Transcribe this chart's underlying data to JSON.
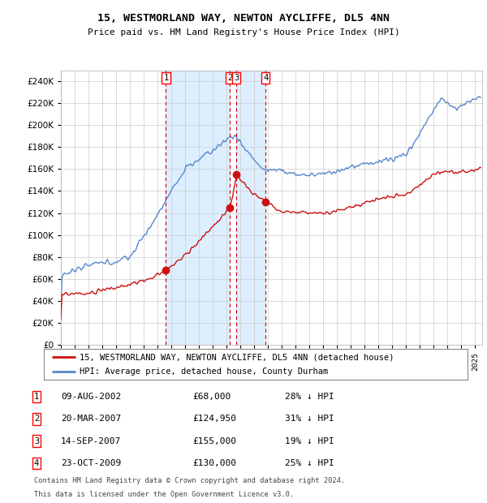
{
  "title1": "15, WESTMORLAND WAY, NEWTON AYCLIFFE, DL5 4NN",
  "title2": "Price paid vs. HM Land Registry's House Price Index (HPI)",
  "legend_label_red": "15, WESTMORLAND WAY, NEWTON AYCLIFFE, DL5 4NN (detached house)",
  "legend_label_blue": "HPI: Average price, detached house, County Durham",
  "footer1": "Contains HM Land Registry data © Crown copyright and database right 2024.",
  "footer2": "This data is licensed under the Open Government Licence v3.0.",
  "transactions": [
    {
      "num": 1,
      "date": "09-AUG-2002",
      "price": 68000,
      "pct": "28% ↓ HPI",
      "date_val": 2002.608
    },
    {
      "num": 2,
      "date": "20-MAR-2007",
      "price": 124950,
      "pct": "31% ↓ HPI",
      "date_val": 2007.217
    },
    {
      "num": 3,
      "date": "14-SEP-2007",
      "price": 155000,
      "pct": "19% ↓ HPI",
      "date_val": 2007.706
    },
    {
      "num": 4,
      "date": "23-OCT-2009",
      "price": 130000,
      "pct": "25% ↓ HPI",
      "date_val": 2009.814
    }
  ],
  "hpi_color": "#5588cc",
  "price_color": "#cc1111",
  "vline_color": "#cc0000",
  "shade_color": "#ddeeff",
  "background_color": "#ffffff",
  "ylim": [
    0,
    250000
  ],
  "yticks": [
    0,
    20000,
    40000,
    60000,
    80000,
    100000,
    120000,
    140000,
    160000,
    180000,
    200000,
    220000,
    240000
  ],
  "xlim_start": 1995.0,
  "xlim_end": 2025.5
}
